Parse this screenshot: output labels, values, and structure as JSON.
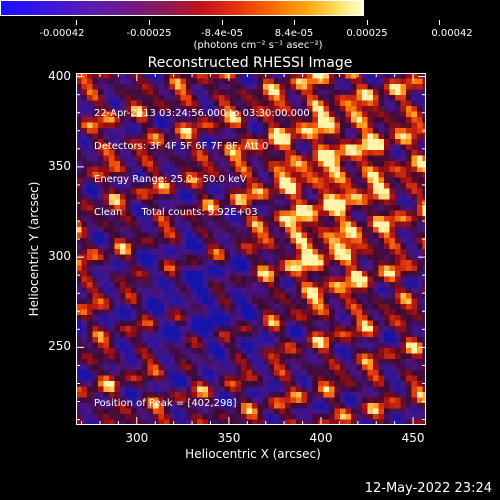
{
  "colorbar": {
    "ticks": [
      "-0.00042",
      "-0.00025",
      "-8.4e-05",
      "8.4e-05",
      "0.00025",
      "0.00042"
    ],
    "units": "(photons cm⁻² s⁻¹ asec⁻²)"
  },
  "chart_data": {
    "type": "heatmap",
    "title": "Reconstructed RHESSI Image",
    "xlabel": "Heliocentric X (arcsec)",
    "ylabel": "Heliocentric Y (arcsec)",
    "xlim": [
      267,
      457
    ],
    "ylim": [
      207,
      402
    ],
    "x_ticks": [
      300,
      350,
      400,
      450
    ],
    "y_ticks": [
      250,
      300,
      350,
      400
    ],
    "color_range": [
      -0.00042,
      0.00042
    ],
    "info_lines": [
      "22-Apr-2013 03:24:56.000 to 03:30:00.000",
      "Detectors: 3F 4F 5F 6F 7F 8F, Att 0",
      "Energy Range: 25.0 - 50.0 keV",
      "Clean      Total counts: 9.92E+03"
    ],
    "peak_text": "Position of Peak = [402,298]"
  },
  "footer": {
    "timestamp": "12-May-2022 23:24"
  }
}
